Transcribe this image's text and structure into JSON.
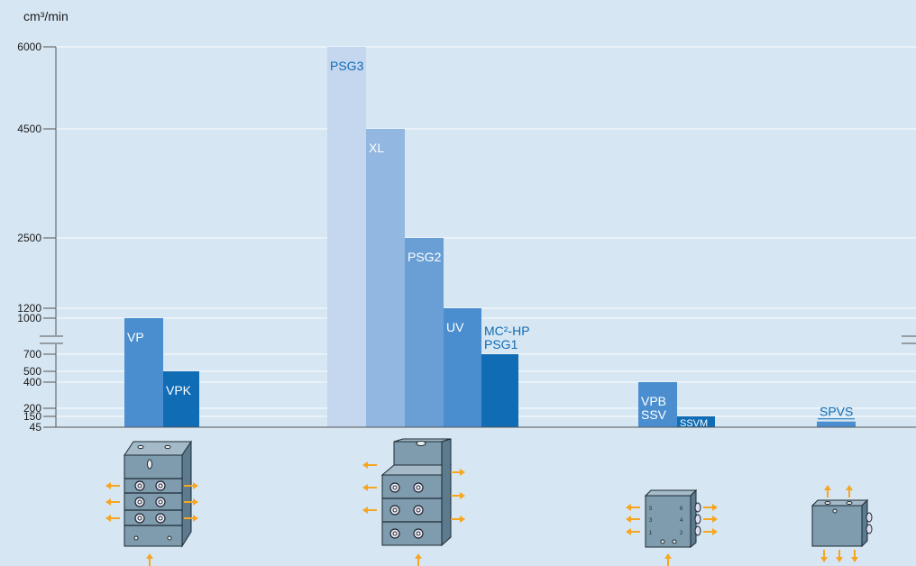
{
  "chart_data": {
    "type": "bar",
    "ylabel": "cm³/min",
    "y_ticks": [
      "6000",
      "4500",
      "2500",
      "1200",
      "1000",
      "700",
      "500",
      "400",
      "200",
      "150",
      "45"
    ],
    "axis_break": true,
    "grid": true,
    "groups": [
      {
        "bars": [
          {
            "label": "VP",
            "value": 1000,
            "color": "#4a8ecf"
          },
          {
            "label": "VPK",
            "value": 500,
            "color": "#0f6cb5"
          }
        ]
      },
      {
        "bars": [
          {
            "label": "PSG3",
            "value": 6000,
            "color": "#c5d7ee"
          },
          {
            "label": "XL",
            "value": 4500,
            "color": "#92b7e0"
          },
          {
            "label": "PSG2",
            "value": 2500,
            "color": "#6a9fd5"
          },
          {
            "label": "UV",
            "value": 1200,
            "color": "#4a8ecf"
          },
          {
            "label": "MC²-HP\nPSG1",
            "value": 700,
            "color": "#0f6cb5"
          }
        ]
      },
      {
        "bars": [
          {
            "label": "VPB\nSSV",
            "value": 400,
            "color": "#4a8ecf"
          },
          {
            "label": "SSVM",
            "value": 150,
            "color": "#0f6cb5"
          }
        ]
      },
      {
        "bars": [
          {
            "label": "SPVS",
            "value": 100,
            "color": "#4a8ecf"
          }
        ]
      }
    ]
  },
  "illustrations": [
    {
      "name": "vp-vpk-divider-block-icon"
    },
    {
      "name": "psg-xl-uv-divider-block-icon"
    },
    {
      "name": "ssv-divider-block-icon"
    },
    {
      "name": "spvs-divider-block-icon"
    }
  ]
}
